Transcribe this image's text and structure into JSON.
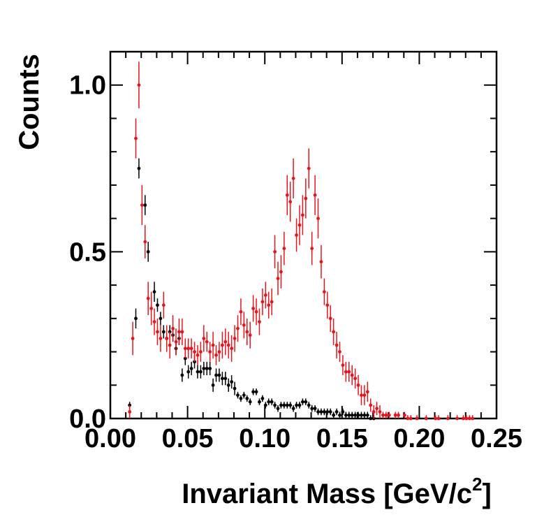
{
  "chart_data": {
    "type": "scatter",
    "title": "",
    "xlabel": "Invariant Mass [GeV/c",
    "xlabel_sup": "2",
    "xlabel_close": "]",
    "ylabel": "Counts",
    "xlim": [
      0.0,
      0.25
    ],
    "ylim": [
      0.0,
      1.1
    ],
    "x_ticks": [
      0.0,
      0.05,
      0.1,
      0.15,
      0.2,
      0.25
    ],
    "x_tick_labels": [
      "0.00",
      "0.05",
      "0.10",
      "0.15",
      "0.20",
      "0.25"
    ],
    "y_ticks": [
      0.0,
      0.5,
      1.0
    ],
    "y_tick_labels": [
      "0.0",
      "0.5",
      "1.0"
    ],
    "series": [
      {
        "name": "red",
        "color": "#e8141c",
        "x": [
          0.0125,
          0.0145,
          0.0165,
          0.0185,
          0.0205,
          0.0225,
          0.0245,
          0.0265,
          0.0285,
          0.0305,
          0.0325,
          0.0345,
          0.0365,
          0.0385,
          0.0405,
          0.0425,
          0.0445,
          0.0465,
          0.0485,
          0.0505,
          0.0525,
          0.0545,
          0.0565,
          0.0585,
          0.0605,
          0.0625,
          0.0645,
          0.0665,
          0.0685,
          0.0705,
          0.0725,
          0.0745,
          0.0765,
          0.0785,
          0.0805,
          0.0825,
          0.0845,
          0.0865,
          0.0885,
          0.0905,
          0.0925,
          0.0945,
          0.0965,
          0.0985,
          0.1005,
          0.1025,
          0.1045,
          0.1065,
          0.1085,
          0.1105,
          0.1125,
          0.1145,
          0.1165,
          0.1185,
          0.1205,
          0.1225,
          0.1245,
          0.1265,
          0.1285,
          0.1305,
          0.1325,
          0.1345,
          0.1365,
          0.1385,
          0.1405,
          0.1425,
          0.1445,
          0.1465,
          0.1485,
          0.1505,
          0.1525,
          0.1545,
          0.1565,
          0.1585,
          0.1605,
          0.1625,
          0.1645,
          0.1665,
          0.1685,
          0.1705,
          0.1725,
          0.1745,
          0.1765,
          0.1785,
          0.1805,
          0.1845,
          0.1865,
          0.1905,
          0.1925,
          0.1945,
          0.1985,
          0.2045,
          0.2105,
          0.2125,
          0.2185,
          0.2245,
          0.2285,
          0.2305,
          0.2325,
          0.2345
        ],
        "y": [
          0.02,
          0.24,
          0.84,
          1.0,
          0.64,
          0.53,
          0.36,
          0.33,
          0.29,
          0.26,
          0.24,
          0.34,
          0.24,
          0.22,
          0.27,
          0.23,
          0.26,
          0.26,
          0.21,
          0.21,
          0.21,
          0.2,
          0.19,
          0.2,
          0.24,
          0.23,
          0.2,
          0.22,
          0.19,
          0.2,
          0.22,
          0.23,
          0.22,
          0.21,
          0.24,
          0.27,
          0.32,
          0.28,
          0.26,
          0.25,
          0.33,
          0.32,
          0.29,
          0.35,
          0.37,
          0.34,
          0.35,
          0.5,
          0.42,
          0.44,
          0.51,
          0.67,
          0.65,
          0.72,
          0.55,
          0.58,
          0.61,
          0.66,
          0.75,
          0.51,
          0.67,
          0.6,
          0.47,
          0.38,
          0.34,
          0.3,
          0.26,
          0.22,
          0.2,
          0.16,
          0.14,
          0.14,
          0.13,
          0.12,
          0.1,
          0.07,
          0.07,
          0.08,
          0.04,
          0.02,
          0.03,
          0.02,
          0.01,
          0.01,
          0.01,
          0.01,
          0.01,
          0.01,
          0.0,
          0.0,
          0.0,
          0.0,
          0.0,
          0.0,
          0.0,
          0.0,
          0.0,
          0.0,
          0.0,
          0.0
        ],
        "err": [
          0.02,
          0.05,
          0.06,
          0.07,
          0.06,
          0.05,
          0.05,
          0.05,
          0.04,
          0.04,
          0.04,
          0.04,
          0.04,
          0.04,
          0.04,
          0.04,
          0.04,
          0.04,
          0.03,
          0.03,
          0.03,
          0.03,
          0.03,
          0.03,
          0.04,
          0.03,
          0.03,
          0.04,
          0.03,
          0.03,
          0.04,
          0.04,
          0.04,
          0.04,
          0.04,
          0.04,
          0.04,
          0.04,
          0.04,
          0.04,
          0.04,
          0.04,
          0.04,
          0.04,
          0.04,
          0.04,
          0.04,
          0.05,
          0.05,
          0.05,
          0.05,
          0.06,
          0.06,
          0.06,
          0.05,
          0.06,
          0.06,
          0.06,
          0.06,
          0.05,
          0.06,
          0.06,
          0.05,
          0.04,
          0.04,
          0.04,
          0.04,
          0.04,
          0.03,
          0.03,
          0.03,
          0.03,
          0.03,
          0.03,
          0.03,
          0.03,
          0.03,
          0.03,
          0.02,
          0.02,
          0.02,
          0.02,
          0.01,
          0.01,
          0.01,
          0.01,
          0.01,
          0.01,
          0.01,
          0.01,
          0.01,
          0.01,
          0.01,
          0.01,
          0.01,
          0.01,
          0.01,
          0.01,
          0.01,
          0.01
        ]
      },
      {
        "name": "black",
        "color": "#000000",
        "x": [
          0.0125,
          0.0165,
          0.0185,
          0.0225,
          0.0245,
          0.0285,
          0.0305,
          0.0325,
          0.0345,
          0.0365,
          0.0385,
          0.0405,
          0.0425,
          0.0445,
          0.0465,
          0.0485,
          0.0505,
          0.0525,
          0.0545,
          0.0565,
          0.0585,
          0.0605,
          0.0625,
          0.0645,
          0.0665,
          0.0685,
          0.0705,
          0.0725,
          0.0745,
          0.0765,
          0.0785,
          0.0805,
          0.0825,
          0.0845,
          0.0865,
          0.0885,
          0.0905,
          0.0925,
          0.0945,
          0.0965,
          0.0985,
          0.1005,
          0.1025,
          0.1045,
          0.1065,
          0.1085,
          0.1105,
          0.1125,
          0.1145,
          0.1165,
          0.1185,
          0.1205,
          0.1225,
          0.1245,
          0.1265,
          0.1285,
          0.1305,
          0.1325,
          0.1345,
          0.1365,
          0.1385,
          0.1405,
          0.1425,
          0.1445,
          0.1465,
          0.1485,
          0.1505,
          0.1525,
          0.1545,
          0.1565,
          0.1585,
          0.1605,
          0.1625,
          0.1645,
          0.1665,
          0.1685,
          0.1705
        ],
        "y": [
          0.04,
          0.3,
          0.75,
          0.64,
          0.5,
          0.38,
          0.34,
          0.3,
          0.26,
          0.24,
          0.26,
          0.25,
          0.21,
          0.24,
          0.13,
          0.18,
          0.14,
          0.15,
          0.17,
          0.14,
          0.14,
          0.15,
          0.15,
          0.15,
          0.1,
          0.13,
          0.13,
          0.12,
          0.12,
          0.1,
          0.11,
          0.09,
          0.07,
          0.06,
          0.07,
          0.06,
          0.05,
          0.08,
          0.08,
          0.05,
          0.06,
          0.04,
          0.05,
          0.05,
          0.04,
          0.03,
          0.04,
          0.04,
          0.04,
          0.04,
          0.03,
          0.04,
          0.04,
          0.05,
          0.05,
          0.04,
          0.03,
          0.03,
          0.02,
          0.02,
          0.02,
          0.02,
          0.02,
          0.01,
          0.02,
          0.01,
          0.02,
          0.01,
          0.01,
          0.01,
          0.01,
          0.01,
          0.01,
          0.01,
          0.01,
          0.0,
          0.0
        ],
        "err": [
          0.01,
          0.03,
          0.03,
          0.03,
          0.03,
          0.03,
          0.02,
          0.02,
          0.02,
          0.02,
          0.02,
          0.02,
          0.02,
          0.02,
          0.02,
          0.02,
          0.02,
          0.02,
          0.02,
          0.02,
          0.02,
          0.02,
          0.02,
          0.02,
          0.02,
          0.02,
          0.02,
          0.02,
          0.02,
          0.02,
          0.02,
          0.02,
          0.01,
          0.01,
          0.01,
          0.01,
          0.01,
          0.01,
          0.01,
          0.01,
          0.01,
          0.01,
          0.01,
          0.01,
          0.01,
          0.01,
          0.01,
          0.01,
          0.01,
          0.01,
          0.01,
          0.01,
          0.01,
          0.01,
          0.01,
          0.01,
          0.01,
          0.01,
          0.01,
          0.01,
          0.01,
          0.01,
          0.01,
          0.01,
          0.01,
          0.01,
          0.01,
          0.01,
          0.01,
          0.01,
          0.01,
          0.01,
          0.01,
          0.01,
          0.01,
          0.01,
          0.01
        ]
      }
    ]
  }
}
